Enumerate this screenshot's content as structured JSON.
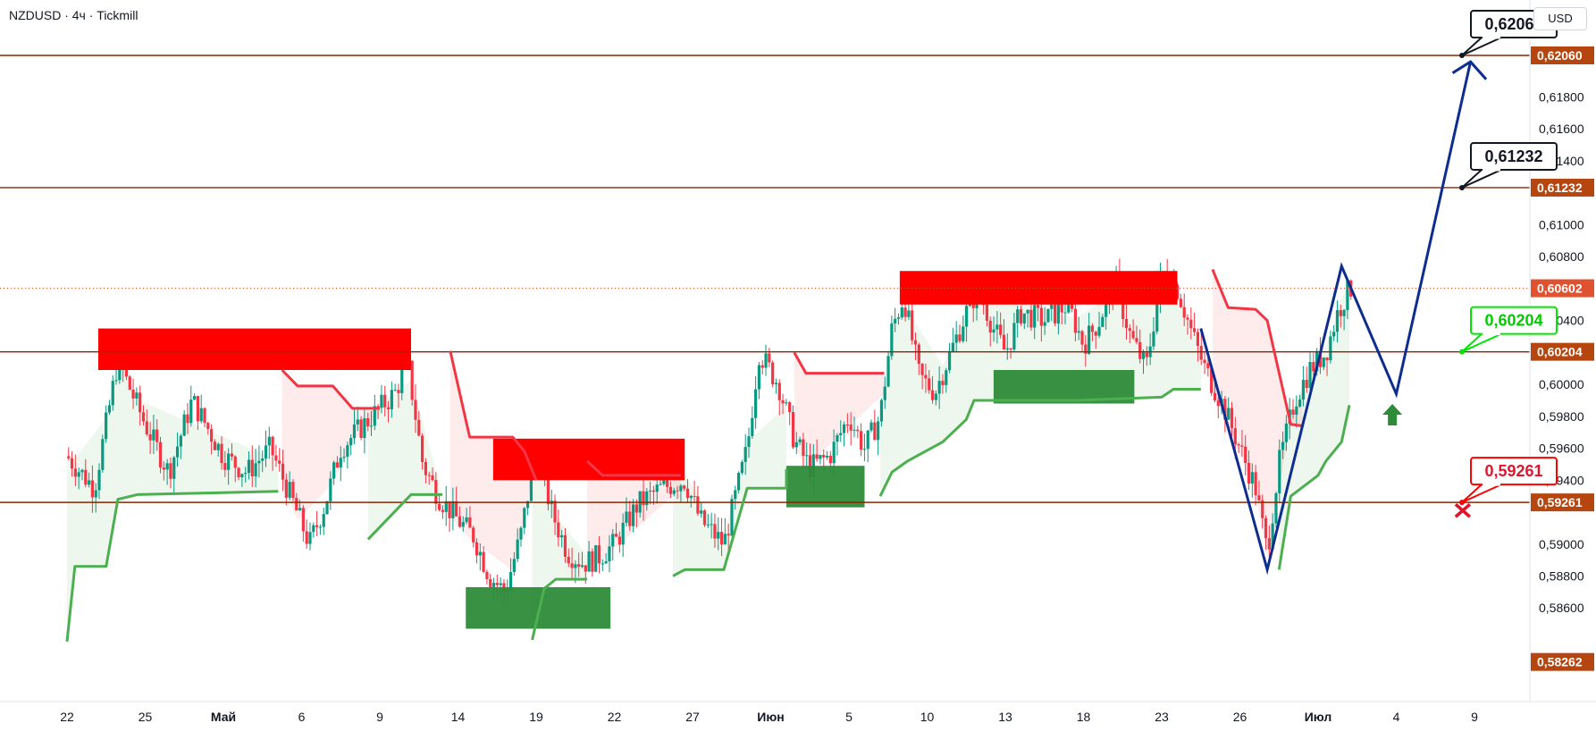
{
  "header": {
    "title": "NZDUSD · 4ч · Tickmill",
    "currency": "USD"
  },
  "colors": {
    "level_line": "#8B2500",
    "level_badge": "#B5460F",
    "current_badge": "#E0522F",
    "supertrend_up": "#4CAF50",
    "supertrend_down": "#F23645",
    "candle_up": "#089981",
    "candle_down": "#F23645",
    "supply_zone": "#FF0000",
    "demand_zone": "#2E8B3A",
    "projection": "#0D2D8F",
    "callout_green": "#00E600",
    "callout_red": "#FF0000"
  },
  "chart_data": {
    "type": "candlestick",
    "symbol": "NZDUSD",
    "timeframe": "4ч",
    "broker": "Tickmill",
    "ylim": [
      0.5826,
      0.623
    ],
    "y_ticks": [
      "0,62060",
      "0,61800",
      "0,61600",
      "0,61400",
      "0,61232",
      "0,61000",
      "0,60800",
      "0,60602",
      "0,60400",
      "0,60204",
      "0,60000",
      "0,59800",
      "0,59600",
      "0,59400",
      "0,59261",
      "0,59000",
      "0,58800",
      "0,58600",
      "0,58262"
    ],
    "x_ticks": [
      "22",
      "25",
      "Май",
      "6",
      "9",
      "14",
      "19",
      "22",
      "27",
      "Июн",
      "5",
      "10",
      "13",
      "18",
      "23",
      "26",
      "Июл",
      "4",
      "9"
    ],
    "levels": [
      {
        "value": 0.6206,
        "label": "0,62060",
        "callout": "0,62060",
        "callout_style": "black"
      },
      {
        "value": 0.61232,
        "label": "0,61232",
        "callout": "0,61232",
        "callout_style": "black"
      },
      {
        "value": 0.60204,
        "label": "0,60204",
        "callout": "0,60204",
        "callout_style": "green"
      },
      {
        "value": 0.59261,
        "label": "0,59261",
        "callout": "0,59261",
        "callout_style": "red"
      }
    ],
    "current_price": {
      "value": 0.60602,
      "label": "0,60602"
    },
    "bottom_price": {
      "value": 0.58262,
      "label": "0,58262"
    },
    "supply_zones": [
      {
        "x_range": [
          0.4,
          4.4
        ],
        "y_range": [
          0.6009,
          0.6035
        ]
      },
      {
        "x_range": [
          5.45,
          7.9
        ],
        "y_range": [
          0.594,
          0.5966
        ]
      },
      {
        "x_range": [
          10.65,
          14.2
        ],
        "y_range": [
          0.605,
          0.6071
        ]
      }
    ],
    "demand_zones": [
      {
        "x_range": [
          5.1,
          6.95
        ],
        "y_range": [
          0.5847,
          0.5873
        ]
      },
      {
        "x_range": [
          9.2,
          10.2
        ],
        "y_range": [
          0.5923,
          0.5949
        ]
      },
      {
        "x_range": [
          11.85,
          13.65
        ],
        "y_range": [
          0.5988,
          0.6009
        ]
      }
    ],
    "projection_path": [
      {
        "x": 14.5,
        "y": 0.6035
      },
      {
        "x": 15.35,
        "y": 0.5884
      },
      {
        "x": 16.3,
        "y": 0.6074
      },
      {
        "x": 17.0,
        "y": 0.5994
      },
      {
        "x": 17.95,
        "y": 0.6202
      }
    ],
    "projection_arrowhead": [
      {
        "x": 17.72,
        "y": 0.6195
      },
      {
        "x": 17.95,
        "y": 0.6202
      },
      {
        "x": 18.15,
        "y": 0.6191
      }
    ],
    "green_arrow": {
      "x": 16.95,
      "y": 0.5981
    },
    "red_cross": {
      "x": 17.85,
      "y": 0.5921
    },
    "supertrend_up": [
      [
        [
          0.0,
          0.5839
        ],
        [
          0.1,
          0.5886
        ],
        [
          0.5,
          0.5886
        ],
        [
          0.65,
          0.5928
        ],
        [
          0.9,
          0.5931
        ],
        [
          2.7,
          0.5933
        ]
      ],
      [
        [
          3.85,
          0.5903
        ],
        [
          4.4,
          0.5931
        ],
        [
          4.8,
          0.5931
        ]
      ],
      [
        [
          5.95,
          0.584
        ],
        [
          6.1,
          0.5872
        ],
        [
          6.25,
          0.5878
        ],
        [
          6.65,
          0.5878
        ]
      ],
      [
        [
          7.75,
          0.588
        ],
        [
          7.9,
          0.5884
        ],
        [
          8.4,
          0.5884
        ],
        [
          8.7,
          0.5935
        ],
        [
          9.2,
          0.5935
        ],
        [
          9.2,
          0.5947
        ]
      ],
      [
        [
          10.4,
          0.593
        ],
        [
          10.55,
          0.5945
        ],
        [
          10.75,
          0.5952
        ],
        [
          11.2,
          0.5964
        ],
        [
          11.5,
          0.5978
        ],
        [
          11.6,
          0.599
        ],
        [
          12.9,
          0.599
        ],
        [
          14.0,
          0.5992
        ],
        [
          14.15,
          0.5997
        ],
        [
          14.5,
          0.5997
        ]
      ],
      [
        [
          15.5,
          0.5884
        ],
        [
          15.65,
          0.593
        ],
        [
          16.0,
          0.5943
        ],
        [
          16.1,
          0.5952
        ],
        [
          16.3,
          0.5964
        ],
        [
          16.4,
          0.5987
        ]
      ]
    ],
    "supertrend_down": [
      [
        [
          2.75,
          0.6009
        ],
        [
          2.95,
          0.5999
        ],
        [
          3.4,
          0.5999
        ],
        [
          3.65,
          0.5985
        ],
        [
          4.0,
          0.5985
        ]
      ],
      [
        [
          4.9,
          0.6021
        ],
        [
          5.15,
          0.5967
        ],
        [
          5.7,
          0.5967
        ],
        [
          5.85,
          0.5958
        ],
        [
          6.0,
          0.594
        ]
      ],
      [
        [
          6.65,
          0.5952
        ],
        [
          6.85,
          0.5943
        ],
        [
          7.85,
          0.5943
        ]
      ],
      [
        [
          9.3,
          0.602
        ],
        [
          9.45,
          0.6007
        ],
        [
          10.45,
          0.6007
        ]
      ],
      [
        [
          14.65,
          0.6072
        ],
        [
          14.85,
          0.6048
        ],
        [
          15.2,
          0.6047
        ],
        [
          15.35,
          0.604
        ],
        [
          15.65,
          0.5975
        ],
        [
          15.8,
          0.5974
        ]
      ]
    ]
  }
}
